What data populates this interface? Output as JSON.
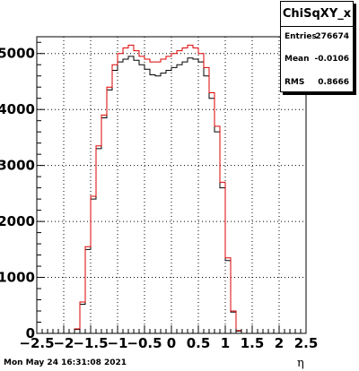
{
  "stats": {
    "title": "ChiSqXY_x",
    "rows": [
      {
        "key": "Entries",
        "value": "276674"
      },
      {
        "key": "Mean",
        "value": "-0.0106"
      },
      {
        "key": "RMS",
        "value": "0.8666"
      }
    ]
  },
  "footer": {
    "date": "Mon May 24 16:31:08 2021"
  },
  "chart_data": {
    "type": "line",
    "title": "",
    "xlabel": "η",
    "ylabel": "",
    "xlim": [
      -2.5,
      2.5
    ],
    "ylim": [
      0,
      5300
    ],
    "grid": true,
    "x_ticks": [
      -2.5,
      -2,
      -1.5,
      -1,
      -0.5,
      0,
      0.5,
      1,
      1.5,
      2,
      2.5
    ],
    "x_tick_labels": [
      "−2.5",
      "−2",
      "−1.5",
      "−1",
      "−0.5",
      "0",
      "0.5",
      "1",
      "1.5",
      "2",
      "2.5"
    ],
    "y_ticks": [
      0,
      1000,
      2000,
      3000,
      4000,
      5000
    ],
    "y_tick_labels": [
      "0",
      "1000",
      "2000",
      "3000",
      "4000",
      "5000"
    ],
    "bin_edges_start": -2.5,
    "bin_width": 0.1,
    "series": [
      {
        "color": "#000000",
        "values": [
          0,
          0,
          0,
          0,
          0,
          0,
          0,
          70,
          520,
          1500,
          2400,
          3300,
          3850,
          4350,
          4700,
          4850,
          4900,
          4950,
          4880,
          4800,
          4720,
          4620,
          4600,
          4650,
          4700,
          4750,
          4800,
          4850,
          4920,
          4900,
          4850,
          4600,
          4200,
          3600,
          2600,
          1300,
          380,
          40,
          0,
          0,
          0,
          0,
          0,
          0,
          0,
          0,
          0,
          0,
          0,
          0
        ]
      },
      {
        "color": "#dd0000",
        "values": [
          0,
          0,
          0,
          0,
          0,
          0,
          0,
          80,
          560,
          1550,
          2450,
          3350,
          3900,
          4400,
          4800,
          5000,
          5100,
          5150,
          5050,
          4950,
          4900,
          4850,
          4850,
          4900,
          4950,
          5000,
          5050,
          5100,
          5150,
          5100,
          5000,
          4750,
          4300,
          3700,
          2700,
          1350,
          400,
          50,
          0,
          0,
          0,
          0,
          0,
          0,
          0,
          0,
          0,
          0,
          0,
          0
        ]
      }
    ]
  }
}
